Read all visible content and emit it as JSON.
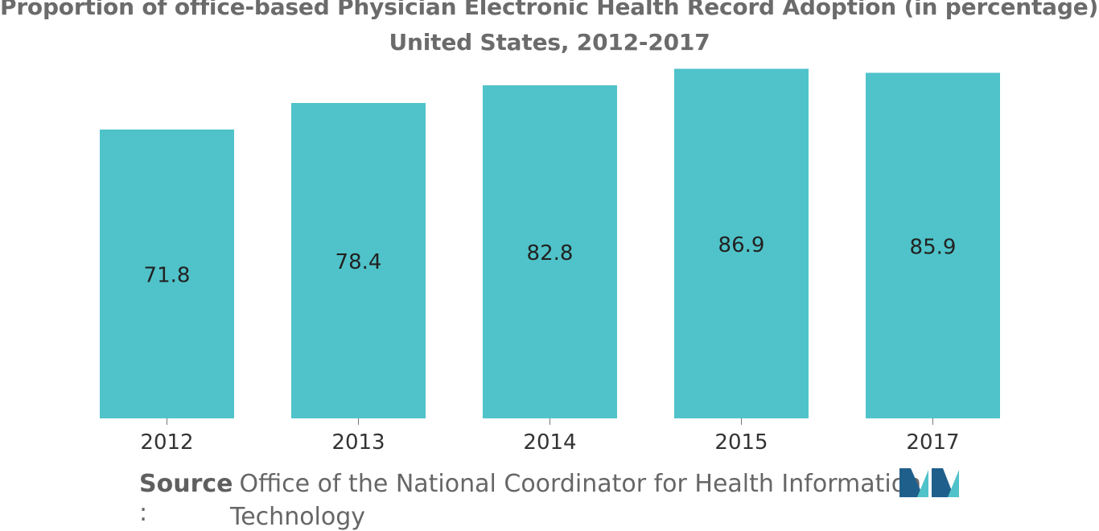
{
  "chart_data": {
    "type": "bar",
    "title_line1": "Proportion of office-based Physician Electronic Health Record Adoption (in percentage),",
    "title_line2": "United States, 2012-2017",
    "categories": [
      "2012",
      "2013",
      "2014",
      "2015",
      "2017"
    ],
    "values": [
      71.8,
      78.4,
      82.8,
      86.9,
      85.9
    ],
    "value_labels": [
      "71.8",
      "78.4",
      "82.8",
      "86.9",
      "85.9"
    ],
    "xlabel": "",
    "ylabel": "",
    "grid": false,
    "bar_color": "#4fc3c9"
  },
  "source": {
    "label": "Source",
    "colon": ":",
    "text_line1": "Office of the National Coordinator for Health Information",
    "text_line2": "Technology"
  },
  "logo": {
    "icon": "mordor-logo-icon",
    "color_dark": "#1f5f8b",
    "color_light": "#4fc3c9"
  }
}
